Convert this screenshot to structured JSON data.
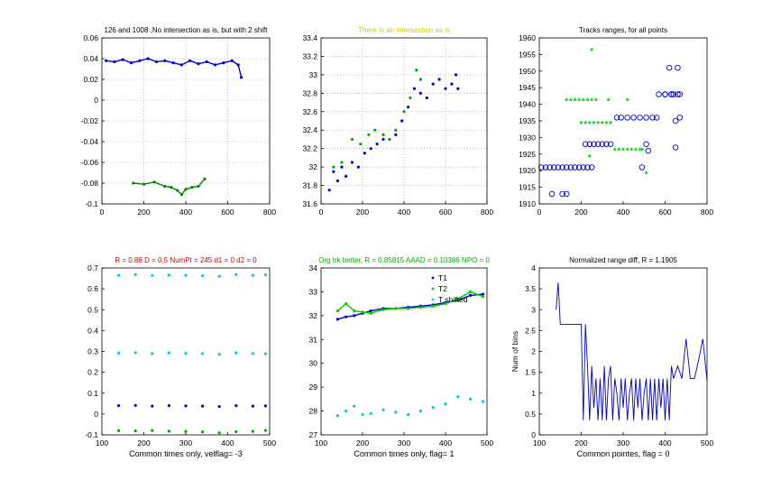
{
  "chart_data": [
    {
      "type": "line",
      "title": "126 and 1008 ,No intersection as is, but with 2 shift",
      "title_color": "#000000",
      "xlabel": "",
      "ylabel": "",
      "xlim": [
        0,
        800
      ],
      "ylim": [
        -0.1,
        0.06
      ],
      "xticks": [
        0,
        200,
        400,
        600,
        800
      ],
      "yticks": [
        -0.1,
        -0.08,
        -0.06,
        -0.04,
        -0.02,
        0,
        0.02,
        0.04,
        0.06
      ],
      "xtick_labels": [
        "0",
        "200",
        "400",
        "600",
        "800"
      ],
      "ytick_labels": [
        "-0.1",
        "-0.08",
        "-0.06",
        "-0.04",
        "-0.02",
        "0",
        "0.02",
        "0.04",
        "0.06"
      ],
      "grid": true,
      "series": [
        {
          "color": "#0000cc",
          "style": "line-dot",
          "x": [
            20,
            60,
            100,
            140,
            180,
            220,
            260,
            300,
            340,
            380,
            420,
            460,
            500,
            540,
            580,
            620,
            650,
            665
          ],
          "y": [
            0.038,
            0.037,
            0.039,
            0.036,
            0.038,
            0.04,
            0.037,
            0.038,
            0.036,
            0.034,
            0.038,
            0.035,
            0.037,
            0.034,
            0.036,
            0.038,
            0.034,
            0.022
          ]
        },
        {
          "color": "#008800",
          "style": "line-dot",
          "x": [
            150,
            200,
            250,
            300,
            330,
            360,
            380,
            400,
            430,
            460,
            490
          ],
          "y": [
            -0.08,
            -0.081,
            -0.079,
            -0.083,
            -0.084,
            -0.087,
            -0.091,
            -0.086,
            -0.084,
            -0.083,
            -0.076
          ]
        }
      ]
    },
    {
      "type": "scatter",
      "title": "There is an intersection as is",
      "title_color": "#cccc00",
      "xlabel": "",
      "ylabel": "",
      "xlim": [
        0,
        800
      ],
      "ylim": [
        31.6,
        33.4
      ],
      "xticks": [
        0,
        200,
        400,
        600,
        800
      ],
      "yticks": [
        31.6,
        31.8,
        32,
        32.2,
        32.4,
        32.6,
        32.8,
        33,
        33.2,
        33.4
      ],
      "xtick_labels": [
        "0",
        "200",
        "400",
        "600",
        "800"
      ],
      "ytick_labels": [
        "31.6",
        "31.8",
        "32",
        "32.2",
        "32.4",
        "32.6",
        "32.8",
        "33",
        "33.2",
        "33.4"
      ],
      "grid": true,
      "series": [
        {
          "color": "#0000cc",
          "style": "dots",
          "x": [
            40,
            60,
            80,
            100,
            120,
            150,
            180,
            210,
            240,
            270,
            300,
            330,
            360,
            390,
            420,
            450,
            480,
            510,
            540,
            570,
            600,
            630,
            650,
            660
          ],
          "y": [
            31.75,
            31.95,
            31.85,
            32.0,
            31.9,
            32.05,
            32.0,
            32.15,
            32.2,
            32.25,
            32.3,
            32.3,
            32.35,
            32.5,
            32.65,
            32.85,
            32.8,
            32.75,
            32.9,
            32.95,
            32.85,
            32.9,
            33.0,
            32.85
          ]
        },
        {
          "color": "#00aa00",
          "style": "dots",
          "x": [
            60,
            100,
            150,
            190,
            230,
            260,
            300,
            330,
            360,
            400,
            430,
            460,
            480
          ],
          "y": [
            32.0,
            32.05,
            32.3,
            32.25,
            32.35,
            32.4,
            32.35,
            32.3,
            32.4,
            32.6,
            32.75,
            33.05,
            32.95
          ]
        }
      ]
    },
    {
      "type": "scatter",
      "title": "Tracks ranges, for all points",
      "title_color": "#000000",
      "xlabel": "",
      "ylabel": "",
      "xlim": [
        0,
        800
      ],
      "ylim": [
        1910,
        1960
      ],
      "xticks": [
        0,
        200,
        400,
        600,
        800
      ],
      "yticks": [
        1910,
        1915,
        1920,
        1925,
        1930,
        1935,
        1940,
        1945,
        1950,
        1955,
        1960
      ],
      "xtick_labels": [
        "0",
        "200",
        "400",
        "600",
        "800"
      ],
      "ytick_labels": [
        "1910",
        "1915",
        "1920",
        "1925",
        "1930",
        "1935",
        "1940",
        "1945",
        "1950",
        "1955",
        "1960"
      ],
      "grid": false,
      "series": [
        {
          "color": "#0000cc",
          "marker": "o",
          "x": [
            10,
            30,
            50,
            70,
            90,
            110,
            130,
            150,
            170,
            190,
            210,
            230,
            250,
            60,
            110,
            130,
            220,
            240,
            260,
            280,
            300,
            320,
            340,
            370,
            390,
            420,
            450,
            480,
            510,
            540,
            570,
            600,
            630,
            660,
            510,
            490,
            560,
            600,
            640,
            670,
            620,
            660,
            650,
            670,
            630,
            650,
            520
          ],
          "y": [
            1921,
            1921,
            1921,
            1921,
            1921,
            1921,
            1921,
            1921,
            1921,
            1921,
            1921,
            1921,
            1921,
            1913,
            1913,
            1913,
            1928,
            1928,
            1928,
            1928,
            1928,
            1928,
            1928,
            1936,
            1936,
            1936,
            1936,
            1936,
            1936,
            1936,
            1943,
            1943,
            1943,
            1943,
            1928,
            1921,
            1936,
            1943,
            1943,
            1943,
            1951,
            1951,
            1935,
            1936,
            1943,
            1927,
            1926
          ]
        },
        {
          "color": "#00cc00",
          "marker": "*",
          "x": [
            130,
            150,
            170,
            190,
            210,
            230,
            250,
            270,
            200,
            220,
            240,
            260,
            280,
            300,
            320,
            340,
            360,
            380,
            400,
            420,
            440,
            460,
            480,
            490,
            250,
            330,
            420,
            510,
            240
          ],
          "y": [
            1941,
            1941,
            1941,
            1941,
            1941,
            1941,
            1941,
            1941,
            1934,
            1934,
            1934,
            1934,
            1934,
            1934,
            1934,
            1934,
            1926,
            1926,
            1926,
            1926,
            1926,
            1926,
            1926,
            1926,
            1956,
            1941,
            1941,
            1919,
            1924
          ]
        }
      ]
    },
    {
      "type": "scatter",
      "title": "R = 0.88  D = 0.5 NumPt = 245 d1 = 0 d2 = 0",
      "title_color": "#cc0000",
      "xlabel": "Common times only, velflag= -3",
      "ylabel": "",
      "xlim": [
        100,
        500
      ],
      "ylim": [
        -0.1,
        0.7
      ],
      "xticks": [
        100,
        200,
        300,
        400,
        500
      ],
      "yticks": [
        -0.1,
        0,
        0.1,
        0.2,
        0.3,
        0.4,
        0.5,
        0.6,
        0.7
      ],
      "xtick_labels": [
        "100",
        "200",
        "300",
        "400",
        "500"
      ],
      "ytick_labels": [
        "-0.1",
        "0",
        "0.1",
        "0.2",
        "0.3",
        "0.4",
        "0.5",
        "0.6",
        "0.7"
      ],
      "grid": false,
      "series": [
        {
          "color": "#00cccc",
          "style": "dots",
          "x": [
            140,
            180,
            220,
            260,
            300,
            340,
            380,
            420,
            460,
            490
          ],
          "y": [
            0.665,
            0.668,
            0.664,
            0.666,
            0.665,
            0.663,
            0.66,
            0.668,
            0.665,
            0.667
          ]
        },
        {
          "color": "#00cccc",
          "style": "dots",
          "x": [
            140,
            180,
            220,
            260,
            300,
            340,
            380,
            420,
            460,
            490
          ],
          "y": [
            0.292,
            0.294,
            0.29,
            0.293,
            0.291,
            0.29,
            0.286,
            0.293,
            0.29,
            0.289
          ]
        },
        {
          "color": "#0000cc",
          "style": "dots",
          "x": [
            140,
            180,
            220,
            260,
            300,
            340,
            380,
            420,
            460,
            490
          ],
          "y": [
            0.04,
            0.041,
            0.038,
            0.04,
            0.039,
            0.038,
            0.036,
            0.04,
            0.038,
            0.039
          ]
        },
        {
          "color": "#00aa00",
          "style": "dots",
          "x": [
            140,
            180,
            220,
            260,
            300,
            340,
            380,
            420,
            460,
            490
          ],
          "y": [
            -0.08,
            -0.081,
            -0.079,
            -0.082,
            -0.083,
            -0.086,
            -0.09,
            -0.085,
            -0.083,
            -0.079
          ]
        }
      ]
    },
    {
      "type": "line",
      "title": "Org trk better, R = 0.85815 AAAD = 0.10386 NPO = 0",
      "title_color": "#00aa00",
      "xlabel": "Common times only, flag= 1",
      "ylabel": "",
      "xlim": [
        100,
        500
      ],
      "ylim": [
        27,
        34
      ],
      "xticks": [
        100,
        200,
        300,
        400,
        500
      ],
      "yticks": [
        27,
        28,
        29,
        30,
        31,
        32,
        33,
        34
      ],
      "xtick_labels": [
        "100",
        "200",
        "300",
        "400",
        "500"
      ],
      "ytick_labels": [
        "27",
        "28",
        "29",
        "30",
        "31",
        "32",
        "33",
        "34"
      ],
      "grid": false,
      "legend": [
        "T1",
        "T2",
        "T shifted"
      ],
      "series": [
        {
          "name": "T1",
          "color": "#0000cc",
          "style": "line-dot",
          "x": [
            140,
            160,
            180,
            200,
            220,
            250,
            280,
            310,
            340,
            370,
            400,
            430,
            460,
            490
          ],
          "y": [
            31.85,
            31.95,
            32.0,
            32.1,
            32.2,
            32.3,
            32.3,
            32.35,
            32.4,
            32.45,
            32.55,
            32.65,
            32.85,
            32.9
          ]
        },
        {
          "name": "T2",
          "color": "#00cc00",
          "style": "line-dot",
          "x": [
            140,
            160,
            180,
            200,
            220,
            250,
            280,
            310,
            340,
            370,
            400,
            430,
            460,
            490
          ],
          "y": [
            32.2,
            32.5,
            32.2,
            32.15,
            32.1,
            32.25,
            32.3,
            32.3,
            32.35,
            32.4,
            32.5,
            32.7,
            33.0,
            32.8
          ]
        },
        {
          "name": "T shifted",
          "color": "#00cccc",
          "style": "dots",
          "x": [
            140,
            160,
            180,
            200,
            220,
            250,
            280,
            310,
            340,
            370,
            400,
            430,
            460,
            490
          ],
          "y": [
            27.8,
            28.0,
            28.2,
            27.85,
            27.9,
            28.05,
            27.95,
            27.85,
            28.0,
            28.15,
            28.3,
            28.6,
            28.5,
            28.4
          ]
        }
      ]
    },
    {
      "type": "line",
      "title": "Normalized range diff, R = 1.1905",
      "title_color": "#000000",
      "xlabel": "Common pointes, flag = 0",
      "ylabel": "Num of bins",
      "xlim": [
        100,
        500
      ],
      "ylim": [
        0,
        4
      ],
      "xticks": [
        100,
        200,
        300,
        400,
        500
      ],
      "yticks": [
        0,
        0.5,
        1,
        1.5,
        2,
        2.5,
        3,
        3.5,
        4
      ],
      "xtick_labels": [
        "100",
        "200",
        "300",
        "400",
        "500"
      ],
      "ytick_labels": [
        "0",
        "0.5",
        "1",
        "1.5",
        "2",
        "2.5",
        "3",
        "3.5",
        "4"
      ],
      "grid": false,
      "series": [
        {
          "color": "#0000cc",
          "style": "line",
          "x": [
            140,
            145,
            150,
            160,
            180,
            190,
            200,
            205,
            210,
            215,
            220,
            225,
            230,
            235,
            240,
            245,
            250,
            255,
            260,
            265,
            270,
            275,
            280,
            285,
            290,
            295,
            300,
            305,
            310,
            315,
            320,
            325,
            330,
            335,
            340,
            345,
            350,
            355,
            360,
            365,
            370,
            375,
            380,
            385,
            390,
            395,
            400,
            405,
            410,
            415,
            420,
            430,
            440,
            450,
            460,
            470,
            480,
            490,
            500
          ],
          "y": [
            3.0,
            3.65,
            2.65,
            2.65,
            2.65,
            2.65,
            2.65,
            0.35,
            2.65,
            1.65,
            0.35,
            1.65,
            0.65,
            1.35,
            0.35,
            1.35,
            0.35,
            1.65,
            0.35,
            1.35,
            1.65,
            0.35,
            1.35,
            1.0,
            0.35,
            1.35,
            0.65,
            1.35,
            0.35,
            1.0,
            1.35,
            0.35,
            1.35,
            0.65,
            1.35,
            0.35,
            1.0,
            1.35,
            0.35,
            1.35,
            0.35,
            1.35,
            0.35,
            1.35,
            0.65,
            1.35,
            0.35,
            1.35,
            0.35,
            1.65,
            1.35,
            1.65,
            1.35,
            2.3,
            1.35,
            1.35,
            1.8,
            2.3,
            1.3
          ]
        }
      ]
    }
  ]
}
